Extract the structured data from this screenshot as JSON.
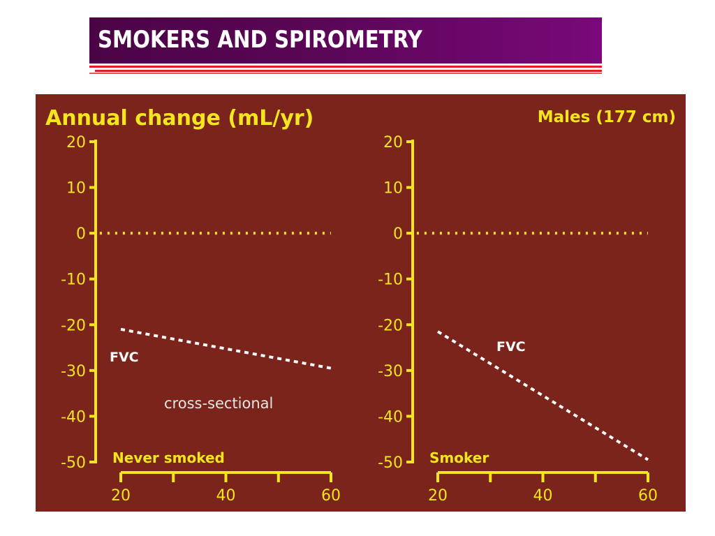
{
  "slide": {
    "title": "SMOKERS AND SPIROMETRY"
  },
  "colors": {
    "title_bar": "#5a0656",
    "rule": "#e21a2a",
    "chart_background": "#7a241b",
    "axis": "#f4e61c",
    "data_line": "#ffffff"
  },
  "chart_data": {
    "type": "line",
    "title": "Annual change (mL/yr)",
    "subtitle": "Males (177 cm)",
    "ylabel": "Annual change (mL/yr)",
    "ylim": [
      -50,
      20
    ],
    "yticks": [
      "20",
      "10",
      "0",
      "-10",
      "-20",
      "-30",
      "-40",
      "-50"
    ],
    "grid": false,
    "panels": [
      {
        "label": "Never smoked",
        "xlim": [
          20,
          60
        ],
        "xticks": [
          "20",
          "40",
          "60"
        ],
        "series": [
          {
            "name": "FVC",
            "x": [
              20,
              60
            ],
            "y": [
              -21,
              -29.5
            ],
            "style": "dashed"
          },
          {
            "x": [
              16,
              60
            ],
            "y": [
              0,
              0
            ],
            "style": "dotted"
          }
        ],
        "annotations": [
          "FVC",
          "cross-sectional"
        ]
      },
      {
        "label": "Smoker",
        "xlim": [
          20,
          60
        ],
        "xticks": [
          "20",
          "40",
          "60"
        ],
        "series": [
          {
            "name": "FVC",
            "x": [
              20,
              60
            ],
            "y": [
              -21.5,
              -49.5
            ],
            "style": "dashed"
          },
          {
            "x": [
              16,
              60
            ],
            "y": [
              0,
              0
            ],
            "style": "dotted"
          }
        ],
        "annotations": [
          "FVC"
        ]
      }
    ]
  }
}
